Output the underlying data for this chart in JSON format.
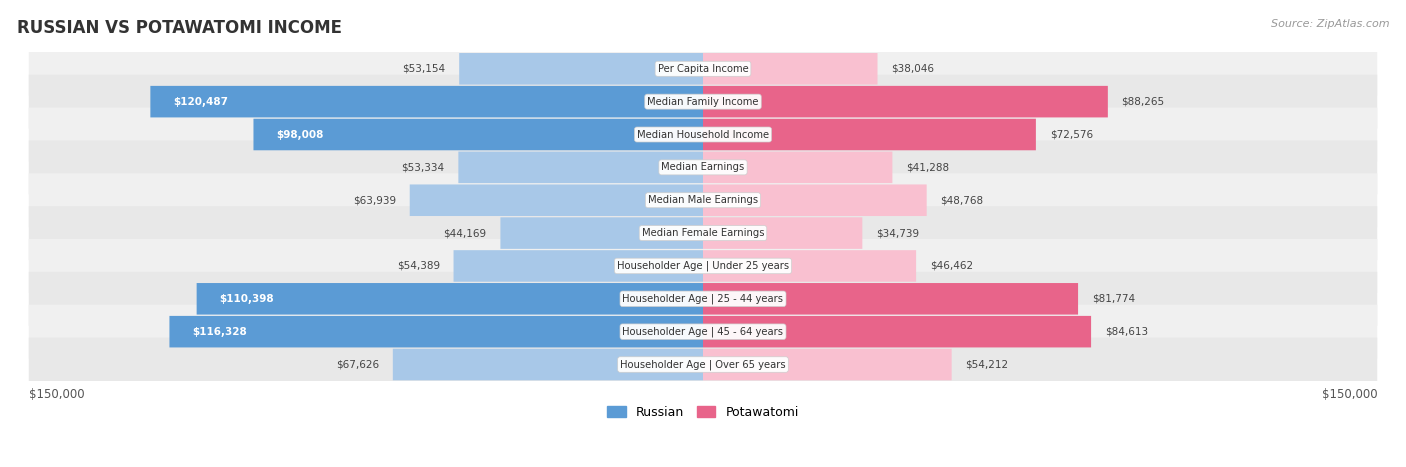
{
  "title": "RUSSIAN VS POTAWATOMI INCOME",
  "source": "Source: ZipAtlas.com",
  "max_val": 150000,
  "categories": [
    "Per Capita Income",
    "Median Family Income",
    "Median Household Income",
    "Median Earnings",
    "Median Male Earnings",
    "Median Female Earnings",
    "Householder Age | Under 25 years",
    "Householder Age | 25 - 44 years",
    "Householder Age | 45 - 64 years",
    "Householder Age | Over 65 years"
  ],
  "russian": [
    53154,
    120487,
    98008,
    53334,
    63939,
    44169,
    54389,
    110398,
    116328,
    67626
  ],
  "potawatomi": [
    38046,
    88265,
    72576,
    41288,
    48768,
    34739,
    46462,
    81774,
    84613,
    54212
  ],
  "russian_labels": [
    "$53,154",
    "$120,487",
    "$98,008",
    "$53,334",
    "$63,939",
    "$44,169",
    "$54,389",
    "$110,398",
    "$116,328",
    "$67,626"
  ],
  "potawatomi_labels": [
    "$38,046",
    "$88,265",
    "$72,576",
    "$41,288",
    "$48,768",
    "$34,739",
    "$46,462",
    "$81,774",
    "$84,613",
    "$54,212"
  ],
  "russian_light_color": "#a8c8e8",
  "russian_dark_color": "#5b9bd5",
  "potawatomi_light_color": "#f9c0d0",
  "potawatomi_dark_color": "#e8648a",
  "inside_threshold": 70000,
  "row_colors": [
    "#f0f0f0",
    "#e8e8e8"
  ],
  "label_threshold": 70000
}
